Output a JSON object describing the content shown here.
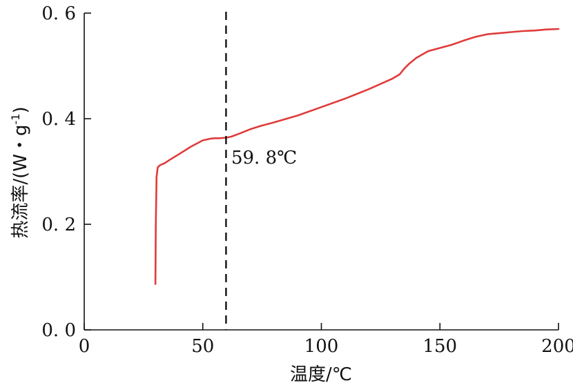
{
  "chart_data": {
    "type": "line",
    "title": "",
    "xlabel": "温度/℃",
    "ylabel": "热流率/(W・g",
    "ylabel_superscript": "-1",
    "ylabel_suffix": ")",
    "xlim": [
      0,
      200
    ],
    "ylim": [
      0,
      0.6
    ],
    "xticks": [
      0,
      50,
      100,
      150,
      200
    ],
    "xtick_labels": [
      "0",
      "50",
      "100",
      "150",
      "200"
    ],
    "yticks": [
      0,
      0.2,
      0.4,
      0.6
    ],
    "ytick_labels": [
      "0. 0",
      "0. 2",
      "0. 4",
      "0. 6"
    ],
    "grid": false,
    "line_color": "#e03a3a",
    "marker_color": "#111111",
    "series": [
      {
        "x": [
          30.0,
          30.2,
          30.5,
          31.0,
          32.0,
          34.0,
          36.0,
          40.0,
          45.0,
          50.0,
          53.0,
          55.0,
          57.0,
          60.0,
          62.0,
          65.0,
          70.0,
          75.0,
          80.0,
          90.0,
          100.0,
          110.0,
          120.0,
          130.0,
          133.0,
          135.0,
          137.0,
          140.0,
          145.0,
          150.0,
          155.0,
          160.0,
          165.0,
          170.0,
          175.0,
          180.0,
          185.0,
          190.0,
          195.0,
          200.0
        ],
        "y": [
          0.087,
          0.2,
          0.29,
          0.308,
          0.312,
          0.316,
          0.322,
          0.333,
          0.347,
          0.359,
          0.362,
          0.363,
          0.363,
          0.364,
          0.366,
          0.371,
          0.38,
          0.387,
          0.393,
          0.406,
          0.422,
          0.438,
          0.456,
          0.476,
          0.484,
          0.495,
          0.504,
          0.515,
          0.528,
          0.534,
          0.54,
          0.548,
          0.555,
          0.56,
          0.562,
          0.564,
          0.566,
          0.567,
          0.569,
          0.57
        ]
      }
    ],
    "annotations": [
      {
        "type": "vline",
        "x": 59.8,
        "style": "dashed"
      },
      {
        "type": "text",
        "text": "59. 8℃",
        "x": 62,
        "y": 0.315
      }
    ]
  }
}
